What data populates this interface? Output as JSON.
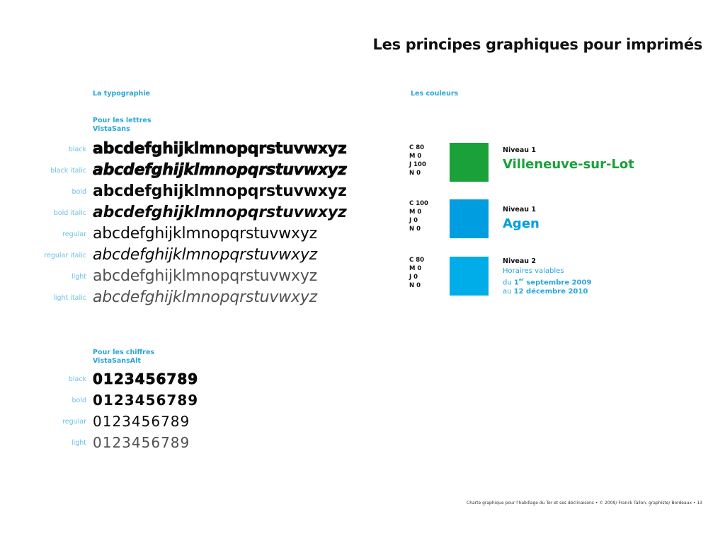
{
  "title": "Les principes graphiques pour imprimés",
  "typography": {
    "heading": "La typographie",
    "letters_heading_1": "Pour les lettres",
    "letters_heading_2": "VistaSans",
    "letters_sample": "abcdefghijklmnopqrstuvwxyz",
    "letters_styles": [
      "black",
      "black italic",
      "bold",
      "bold italic",
      "regular",
      "regular italic",
      "light",
      "light italic"
    ],
    "digits_heading_1": "Pour les chiffres",
    "digits_heading_2": "VistaSansAlt",
    "digits_sample": "0123456789",
    "digits_styles": [
      "black",
      "bold",
      "regular",
      "light"
    ]
  },
  "colors": {
    "heading": "Les couleurs",
    "items": [
      {
        "cmyk": [
          "C 80",
          "M 0",
          "J 100",
          "N 0"
        ],
        "hex": "#1aa13a",
        "level": "Niveau 1",
        "name": "Villeneuve-sur-Lot"
      },
      {
        "cmyk": [
          "C 100",
          "M 0",
          "J 0",
          "N 0"
        ],
        "hex": "#009ee0",
        "level": "Niveau 1",
        "name": "Agen"
      },
      {
        "cmyk": [
          "C 80",
          "M 0",
          "J 0",
          "N 0"
        ],
        "hex": "#00ade9",
        "level": "Niveau 2",
        "text_1": "Horaires valables",
        "text_2a": "du ",
        "text_2b": "1",
        "text_2sup": "er",
        "text_2c": " septembre 2009",
        "text_3a": "au ",
        "text_3b": "12 décembre 2010"
      }
    ]
  },
  "footer": "Charte graphique pour l'habillage du Ter et ses déclinaisons • © 2009/ Franck Tallon, graphiste/ Bordeaux • 13"
}
